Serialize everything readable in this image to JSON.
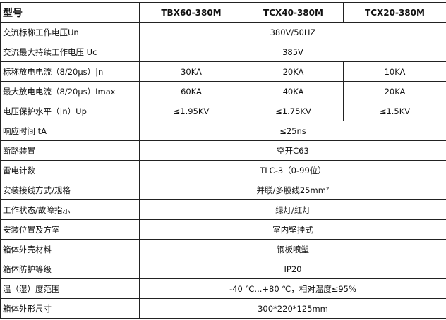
{
  "header": {
    "label": "型号",
    "models": [
      "TBX60-380M",
      "TCX40-380M",
      "TCX20-380M"
    ]
  },
  "rows": [
    {
      "label": "交流标称工作电压Un",
      "values": [
        "380V/50HZ"
      ]
    },
    {
      "label": "交流最大持续工作电压 Uc",
      "values": [
        "385V"
      ]
    },
    {
      "label": "标称放电电流（8/20μs）|n",
      "values": [
        "30KA",
        "20KA",
        "10KA"
      ]
    },
    {
      "label": "最大放电电流（8/20μs）Imax",
      "values": [
        "60KA",
        "40KA",
        "20KA"
      ]
    },
    {
      "label": "电压保护水平（|n）Up",
      "values": [
        "≤1.95KV",
        "≤1.75KV",
        "≤1.5KV"
      ]
    },
    {
      "label": "响应时间 tA",
      "values": [
        "≤25ns"
      ]
    },
    {
      "label": "断路装置",
      "values": [
        "空开C63"
      ]
    },
    {
      "label": "雷电计数",
      "values": [
        "TLC-3（0-99位）"
      ]
    },
    {
      "label": "安装接线方式/规格",
      "values": [
        "并联/多股线25mm²"
      ]
    },
    {
      "label": "工作状态/故障指示",
      "values": [
        "绿灯/红灯"
      ]
    },
    {
      "label": "安装位置及方室",
      "values": [
        "室内壁挂式"
      ]
    },
    {
      "label": "箱体外壳材料",
      "values": [
        "钢板喷塑"
      ]
    },
    {
      "label": "箱体防护等级",
      "values": [
        "IP20"
      ]
    },
    {
      "label": "温（湿）度范围",
      "values": [
        "-40 ℃...+80 ℃，相对温度≤95%"
      ]
    },
    {
      "label": "箱体外形尺寸",
      "values": [
        "300*220*125mm"
      ]
    }
  ]
}
